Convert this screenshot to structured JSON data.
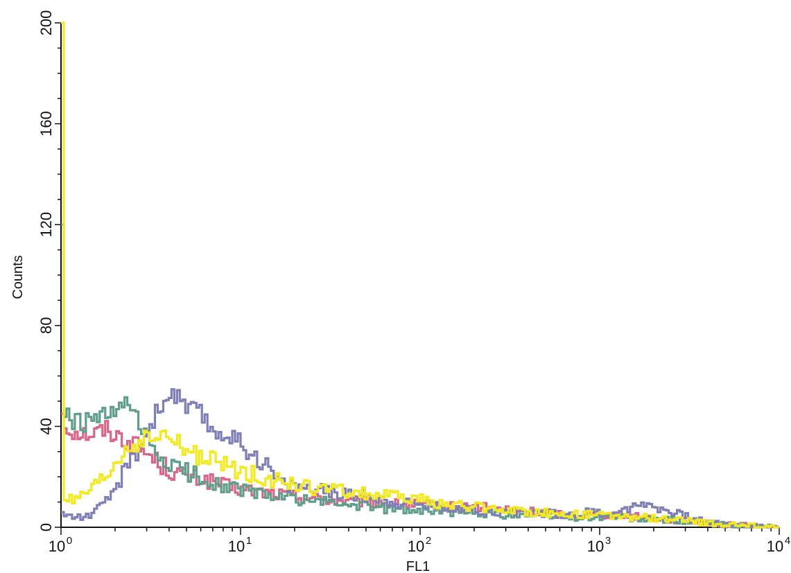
{
  "chart_data": {
    "type": "line",
    "title": "",
    "xlabel": "FL1",
    "ylabel": "Counts",
    "x_scale": "log",
    "xlim": [
      1,
      10000
    ],
    "ylim": [
      0,
      200
    ],
    "grid": false,
    "x_tick_labels": [
      {
        "base": "10",
        "exp": "0"
      },
      {
        "base": "10",
        "exp": "1"
      },
      {
        "base": "10",
        "exp": "2"
      },
      {
        "base": "10",
        "exp": "3"
      },
      {
        "base": "10",
        "exp": "4"
      }
    ],
    "y_tick_labels": [
      "0",
      "40",
      "80",
      "120",
      "160",
      "200"
    ],
    "series": [
      {
        "color": "#d9668a",
        "x": [
          1,
          1.05,
          1.2,
          1.5,
          1.8,
          2.1,
          2.4,
          2.8,
          3.2,
          3.6,
          4.2,
          5,
          6,
          7,
          8.5,
          10,
          13,
          17,
          22,
          30,
          40,
          55,
          75,
          100,
          140,
          200,
          300,
          450,
          650,
          900,
          1300,
          1800,
          2500,
          3500,
          5000,
          7000,
          10000
        ],
        "y": [
          45,
          40,
          38,
          37,
          39,
          36,
          34,
          31,
          28,
          25,
          22,
          20,
          19,
          18,
          16,
          15,
          14,
          13,
          12,
          11,
          10,
          10,
          9,
          9,
          8,
          8,
          7,
          6,
          5,
          5,
          5,
          4,
          3,
          2,
          1,
          0.5,
          0
        ]
      },
      {
        "color": "#5f9e8a",
        "x": [
          1,
          1.05,
          1.2,
          1.5,
          1.8,
          2.1,
          2.4,
          2.8,
          3.2,
          3.6,
          4.2,
          5,
          6,
          7,
          8.5,
          10,
          13,
          17,
          22,
          30,
          40,
          55,
          75,
          100,
          140,
          200,
          300,
          450,
          650,
          900,
          1300,
          1800,
          2500,
          3500,
          5000,
          7000,
          10000
        ],
        "y": [
          120,
          45,
          41,
          42,
          44,
          46,
          49,
          38,
          32,
          27,
          24,
          22,
          20,
          18,
          16,
          15,
          13,
          12,
          11,
          10,
          9,
          8,
          7,
          7,
          6,
          6,
          5,
          5,
          4,
          4,
          4,
          3,
          3,
          2,
          1,
          0.5,
          0
        ]
      },
      {
        "color": "#7f7fb8",
        "x": [
          1,
          1.05,
          1.2,
          1.5,
          1.8,
          2.1,
          2.4,
          2.8,
          3.2,
          3.6,
          4.2,
          5,
          6,
          7,
          8.5,
          10,
          13,
          17,
          22,
          30,
          40,
          55,
          75,
          100,
          140,
          200,
          300,
          450,
          650,
          900,
          1300,
          1800,
          2500,
          3500,
          5000,
          7000,
          10000
        ],
        "y": [
          6,
          5,
          4,
          5,
          10,
          18,
          25,
          33,
          42,
          48,
          54,
          47,
          45,
          38,
          37,
          33,
          27,
          17,
          16,
          14,
          13,
          12,
          10,
          9,
          8,
          7,
          6,
          6,
          5,
          6,
          6,
          10,
          6,
          3,
          1,
          0.5,
          0
        ]
      },
      {
        "color": "#f2ea1c",
        "x": [
          1,
          1.05,
          1.2,
          1.5,
          1.8,
          2.1,
          2.4,
          2.8,
          3.2,
          3.6,
          4.2,
          5,
          6,
          7,
          8.5,
          10,
          13,
          17,
          22,
          30,
          40,
          55,
          75,
          100,
          140,
          200,
          300,
          450,
          650,
          900,
          1300,
          1800,
          2500,
          3500,
          5000,
          7000,
          10000
        ],
        "y": [
          200,
          12,
          10,
          15,
          20,
          27,
          32,
          34,
          35,
          36,
          35,
          30,
          28,
          26,
          24,
          22,
          20,
          18,
          16,
          15,
          14,
          13,
          12,
          11,
          9,
          8,
          7,
          6,
          5,
          5,
          4,
          4,
          3,
          2,
          1,
          0.5,
          0
        ]
      }
    ]
  }
}
